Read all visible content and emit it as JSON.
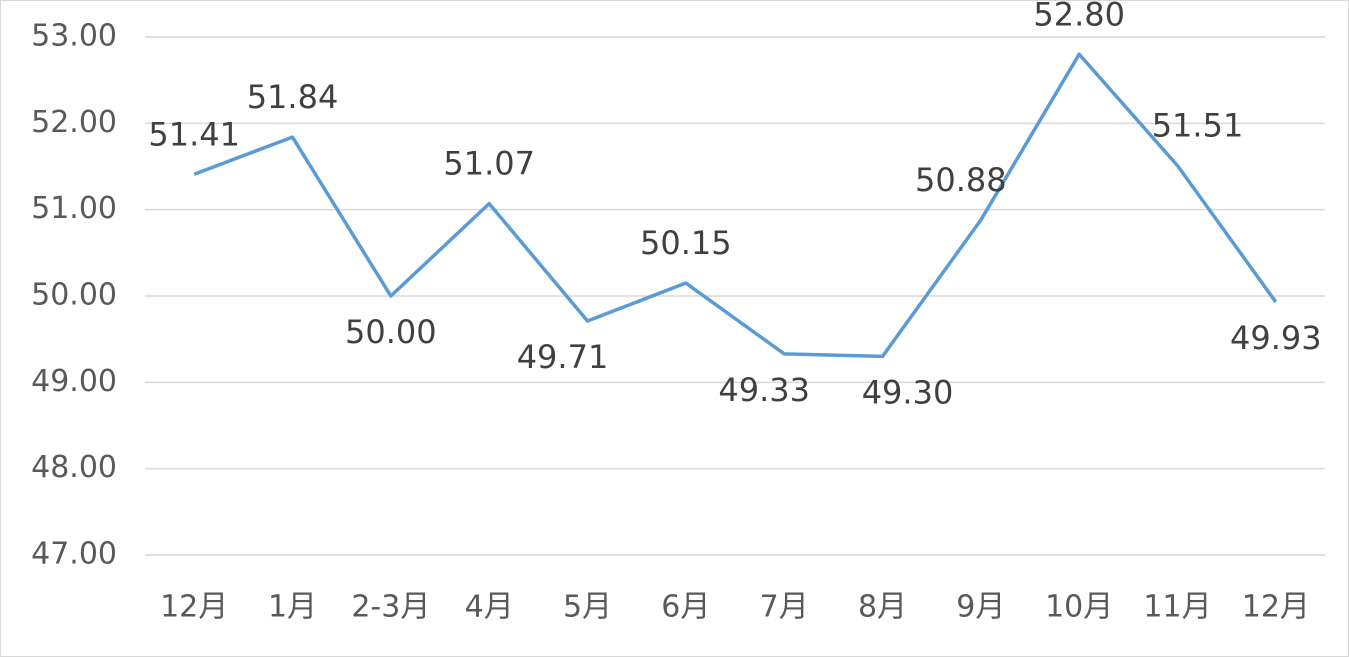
{
  "chart_data": {
    "type": "line",
    "categories": [
      "12月",
      "1月",
      "2-3月",
      "4月",
      "5月",
      "6月",
      "7月",
      "8月",
      "9月",
      "10月",
      "11月",
      "12月"
    ],
    "series": [
      {
        "color": "#5b9bd5",
        "values": [
          51.41,
          51.84,
          50.0,
          51.07,
          49.71,
          50.15,
          49.33,
          49.3,
          50.88,
          52.8,
          51.51,
          49.93
        ],
        "value_labels": [
          "51.41",
          "51.84",
          "50.00",
          "51.07",
          "49.71",
          "50.15",
          "49.33",
          "49.30",
          "50.88",
          "52.80",
          "51.51",
          "49.93"
        ]
      }
    ],
    "ylim": [
      47,
      53
    ],
    "yticks": [
      {
        "value": 47,
        "label": "47.00"
      },
      {
        "value": 48,
        "label": "48.00"
      },
      {
        "value": 49,
        "label": "49.00"
      },
      {
        "value": 50,
        "label": "50.00"
      },
      {
        "value": 51,
        "label": "51.00"
      },
      {
        "value": 52,
        "label": "52.00"
      },
      {
        "value": 53,
        "label": "53.00"
      }
    ],
    "grid": true
  }
}
